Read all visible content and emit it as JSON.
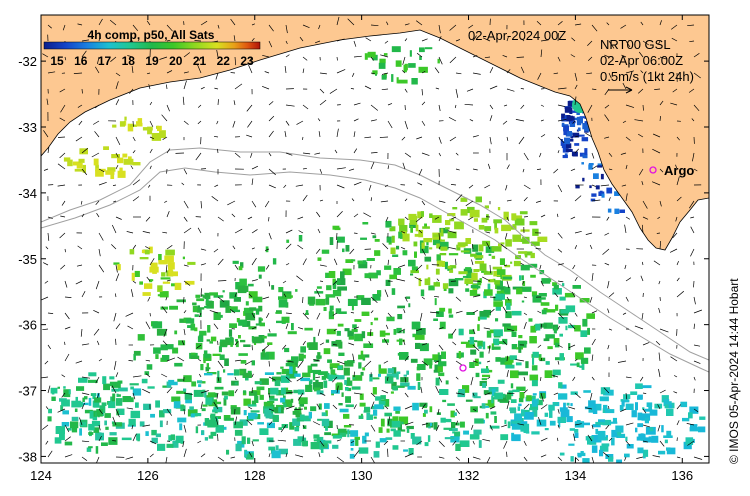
{
  "title": {
    "product": "4h comp, p50, All Sats",
    "date": "02-Apr-2024 00Z",
    "current_product": "NRT00 GSL",
    "current_time": "02-Apr 06:00Z",
    "scale_label": "0.5m/s (1kt 24h)",
    "credit": "© IMOS 05-Apr-2024 14:44 Hobart"
  },
  "colorbar": {
    "ticks": [
      "15",
      "16",
      "17",
      "18",
      "19",
      "20",
      "21",
      "22",
      "23"
    ],
    "colors": [
      "#0a1e8c",
      "#1444c8",
      "#1a80e0",
      "#1cc0d0",
      "#20c890",
      "#22b84a",
      "#3cc828",
      "#90d820",
      "#d8e020",
      "#e8a018",
      "#e05810",
      "#b01408"
    ]
  },
  "colors": {
    "land": "#fdc891",
    "ocean": "#ffffff",
    "frame": "#000000",
    "contour": "#a0a0a0",
    "argo": "#e010e0"
  },
  "axes": {
    "lon_ticks": [
      "124",
      "126",
      "128",
      "130",
      "132",
      "134",
      "136"
    ],
    "lat_ticks": [
      "-32",
      "-33",
      "-34",
      "-35",
      "-36",
      "-37",
      "-38"
    ]
  },
  "markers": {
    "argo_label": "Argo"
  }
}
